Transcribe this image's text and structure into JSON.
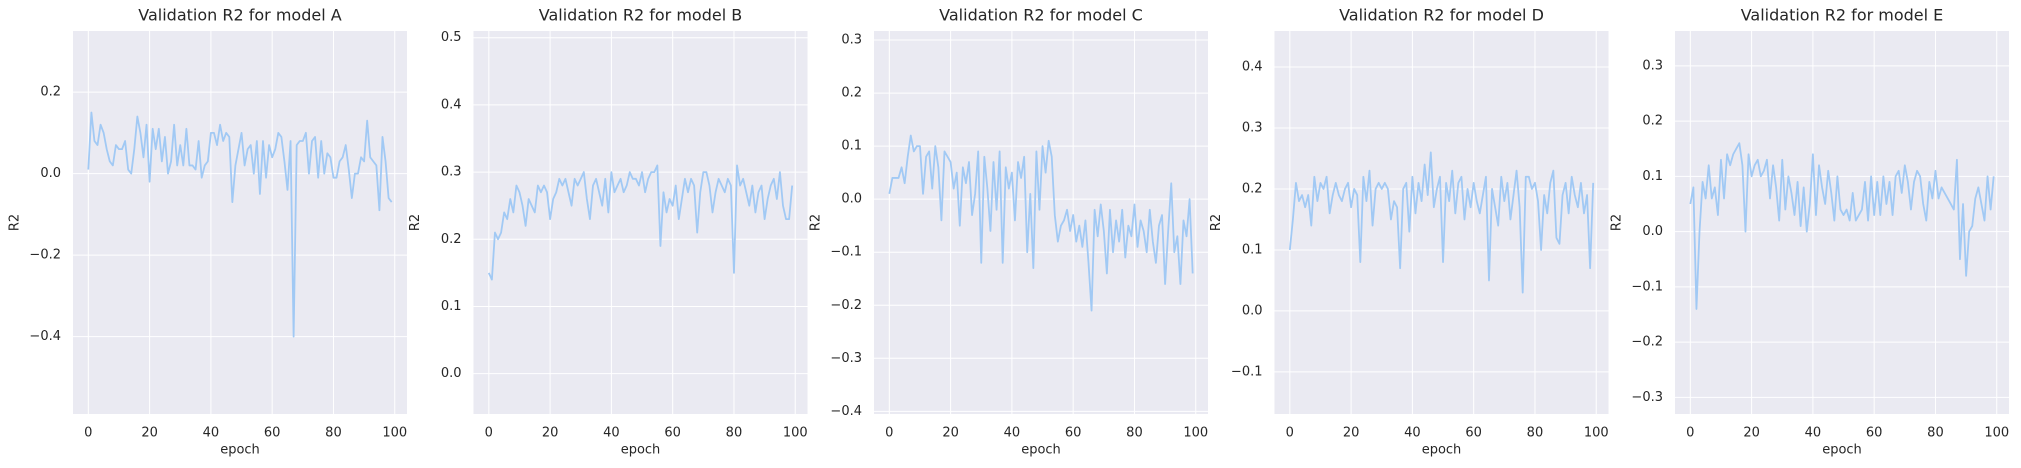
{
  "chart_data": [
    {
      "type": "line",
      "title": "Validation R2 for model A",
      "x_label": "epoch",
      "y_label": "R2",
      "grid": true,
      "color": "#a1c9f4",
      "x": [
        0,
        1,
        2,
        3,
        4,
        5,
        6,
        7,
        8,
        9,
        10,
        11,
        12,
        13,
        14,
        15,
        16,
        17,
        18,
        19,
        20,
        21,
        22,
        23,
        24,
        25,
        26,
        27,
        28,
        29,
        30,
        31,
        32,
        33,
        34,
        35,
        36,
        37,
        38,
        39,
        40,
        41,
        42,
        43,
        44,
        45,
        46,
        47,
        48,
        49,
        50,
        51,
        52,
        53,
        54,
        55,
        56,
        57,
        58,
        59,
        60,
        61,
        62,
        63,
        64,
        65,
        66,
        67,
        68,
        69,
        70,
        71,
        72,
        73,
        74,
        75,
        76,
        77,
        78,
        79,
        80,
        81,
        82,
        83,
        84,
        85,
        86,
        87,
        88,
        89,
        90,
        91,
        92,
        93,
        94,
        95,
        96,
        97,
        98,
        99
      ],
      "values": [
        0.01,
        0.15,
        0.08,
        0.07,
        0.12,
        0.1,
        0.06,
        0.03,
        0.02,
        0.07,
        0.06,
        0.06,
        0.08,
        0.01,
        0.0,
        0.06,
        0.14,
        0.1,
        0.04,
        0.12,
        -0.02,
        0.11,
        0.06,
        0.11,
        0.03,
        0.09,
        0.0,
        0.03,
        0.12,
        0.02,
        0.07,
        0.02,
        0.11,
        0.02,
        0.02,
        0.01,
        0.08,
        -0.01,
        0.02,
        0.03,
        0.1,
        0.1,
        0.07,
        0.12,
        0.08,
        0.1,
        0.09,
        -0.07,
        0.02,
        0.06,
        0.1,
        0.02,
        0.06,
        0.07,
        0.0,
        0.08,
        -0.05,
        0.08,
        -0.01,
        0.07,
        0.04,
        0.06,
        0.1,
        0.09,
        0.03,
        -0.04,
        0.08,
        -0.4,
        0.07,
        0.08,
        0.08,
        0.1,
        0.0,
        0.08,
        0.09,
        -0.01,
        0.08,
        0.0,
        0.05,
        0.04,
        -0.01,
        -0.01,
        0.03,
        0.04,
        0.07,
        0.01,
        -0.06,
        0.0,
        0.0,
        0.04,
        0.03,
        0.13,
        0.04,
        0.03,
        0.02,
        -0.09,
        0.09,
        0.03,
        -0.06,
        -0.07
      ],
      "xlim": [
        -5,
        104
      ],
      "xticks": [
        0,
        20,
        40,
        60,
        80,
        100
      ],
      "ylim": [
        -0.59,
        0.35
      ],
      "yticks": [
        {
          "value": -0.4,
          "label": "−0.4"
        },
        {
          "value": -0.2,
          "label": "−0.2"
        },
        {
          "value": 0,
          "label": "0.0"
        },
        0.2
      ]
    },
    {
      "type": "line",
      "title": "Validation R2 for model B",
      "x_label": "epoch",
      "y_label": "R2",
      "grid": true,
      "color": "#a1c9f4",
      "x": [
        0,
        1,
        2,
        3,
        4,
        5,
        6,
        7,
        8,
        9,
        10,
        11,
        12,
        13,
        14,
        15,
        16,
        17,
        18,
        19,
        20,
        21,
        22,
        23,
        24,
        25,
        26,
        27,
        28,
        29,
        30,
        31,
        32,
        33,
        34,
        35,
        36,
        37,
        38,
        39,
        40,
        41,
        42,
        43,
        44,
        45,
        46,
        47,
        48,
        49,
        50,
        51,
        52,
        53,
        54,
        55,
        56,
        57,
        58,
        59,
        60,
        61,
        62,
        63,
        64,
        65,
        66,
        67,
        68,
        69,
        70,
        71,
        72,
        73,
        74,
        75,
        76,
        77,
        78,
        79,
        80,
        81,
        82,
        83,
        84,
        85,
        86,
        87,
        88,
        89,
        90,
        91,
        92,
        93,
        94,
        95,
        96,
        97,
        98,
        99
      ],
      "values": [
        0.15,
        0.14,
        0.21,
        0.2,
        0.21,
        0.24,
        0.23,
        0.26,
        0.24,
        0.28,
        0.27,
        0.25,
        0.22,
        0.26,
        0.25,
        0.24,
        0.28,
        0.27,
        0.28,
        0.27,
        0.23,
        0.26,
        0.27,
        0.29,
        0.28,
        0.29,
        0.27,
        0.25,
        0.29,
        0.28,
        0.29,
        0.3,
        0.26,
        0.23,
        0.28,
        0.29,
        0.27,
        0.25,
        0.29,
        0.24,
        0.3,
        0.27,
        0.28,
        0.29,
        0.27,
        0.28,
        0.3,
        0.29,
        0.29,
        0.28,
        0.3,
        0.27,
        0.29,
        0.3,
        0.3,
        0.31,
        0.19,
        0.27,
        0.24,
        0.26,
        0.25,
        0.28,
        0.23,
        0.26,
        0.29,
        0.27,
        0.29,
        0.28,
        0.21,
        0.27,
        0.3,
        0.3,
        0.28,
        0.24,
        0.27,
        0.29,
        0.28,
        0.27,
        0.29,
        0.28,
        0.15,
        0.31,
        0.28,
        0.29,
        0.27,
        0.25,
        0.28,
        0.24,
        0.27,
        0.28,
        0.23,
        0.26,
        0.28,
        0.29,
        0.26,
        0.3,
        0.25,
        0.23,
        0.23,
        0.28
      ],
      "xlim": [
        -5,
        104
      ],
      "xticks": [
        0,
        20,
        40,
        60,
        80,
        100
      ],
      "ylim": [
        -0.06,
        0.51
      ],
      "yticks": [
        {
          "value": 0,
          "label": "0.0"
        },
        0.1,
        0.2,
        0.3,
        0.4,
        0.5
      ]
    },
    {
      "type": "line",
      "title": "Validation R2 for model C",
      "x_label": "epoch",
      "y_label": "R2",
      "grid": true,
      "color": "#a1c9f4",
      "x": [
        0,
        1,
        2,
        3,
        4,
        5,
        6,
        7,
        8,
        9,
        10,
        11,
        12,
        13,
        14,
        15,
        16,
        17,
        18,
        19,
        20,
        21,
        22,
        23,
        24,
        25,
        26,
        27,
        28,
        29,
        30,
        31,
        32,
        33,
        34,
        35,
        36,
        37,
        38,
        39,
        40,
        41,
        42,
        43,
        44,
        45,
        46,
        47,
        48,
        49,
        50,
        51,
        52,
        53,
        54,
        55,
        56,
        57,
        58,
        59,
        60,
        61,
        62,
        63,
        64,
        65,
        66,
        67,
        68,
        69,
        70,
        71,
        72,
        73,
        74,
        75,
        76,
        77,
        78,
        79,
        80,
        81,
        82,
        83,
        84,
        85,
        86,
        87,
        88,
        89,
        90,
        91,
        92,
        93,
        94,
        95,
        96,
        97,
        98,
        99
      ],
      "values": [
        0.01,
        0.04,
        0.04,
        0.04,
        0.06,
        0.03,
        0.08,
        0.12,
        0.09,
        0.1,
        0.1,
        0.01,
        0.08,
        0.09,
        0.02,
        0.1,
        0.06,
        -0.04,
        0.09,
        0.08,
        0.07,
        0.02,
        0.05,
        -0.05,
        0.06,
        0.03,
        0.07,
        -0.03,
        0.01,
        0.09,
        -0.12,
        0.08,
        0.02,
        -0.06,
        0.07,
        -0.02,
        0.09,
        -0.12,
        0.06,
        0.02,
        0.05,
        -0.04,
        0.07,
        0.04,
        0.08,
        -0.1,
        0.01,
        -0.13,
        0.09,
        -0.02,
        0.1,
        0.05,
        0.11,
        0.08,
        -0.03,
        -0.08,
        -0.05,
        -0.04,
        -0.02,
        -0.06,
        -0.03,
        -0.08,
        -0.05,
        -0.09,
        -0.04,
        -0.12,
        -0.21,
        -0.02,
        -0.07,
        -0.01,
        -0.06,
        -0.14,
        -0.02,
        -0.1,
        -0.04,
        -0.08,
        -0.02,
        -0.11,
        -0.05,
        -0.07,
        -0.01,
        -0.09,
        -0.04,
        -0.06,
        -0.1,
        -0.02,
        -0.08,
        -0.12,
        -0.05,
        -0.03,
        -0.16,
        -0.06,
        0.03,
        -0.1,
        -0.07,
        -0.16,
        -0.04,
        -0.07,
        0.0,
        -0.14
      ],
      "xlim": [
        -5,
        104
      ],
      "xticks": [
        0,
        20,
        40,
        60,
        80,
        100
      ],
      "ylim": [
        -0.405,
        0.317
      ],
      "yticks": [
        {
          "value": -0.4,
          "label": "−0.4"
        },
        {
          "value": -0.3,
          "label": "−0.3"
        },
        {
          "value": -0.2,
          "label": "−0.2"
        },
        {
          "value": -0.1,
          "label": "−0.1"
        },
        {
          "value": 0,
          "label": "0.0"
        },
        0.1,
        0.2,
        0.3
      ]
    },
    {
      "type": "line",
      "title": "Validation R2 for model D",
      "x_label": "epoch",
      "y_label": "R2",
      "grid": true,
      "color": "#a1c9f4",
      "x": [
        0,
        1,
        2,
        3,
        4,
        5,
        6,
        7,
        8,
        9,
        10,
        11,
        12,
        13,
        14,
        15,
        16,
        17,
        18,
        19,
        20,
        21,
        22,
        23,
        24,
        25,
        26,
        27,
        28,
        29,
        30,
        31,
        32,
        33,
        34,
        35,
        36,
        37,
        38,
        39,
        40,
        41,
        42,
        43,
        44,
        45,
        46,
        47,
        48,
        49,
        50,
        51,
        52,
        53,
        54,
        55,
        56,
        57,
        58,
        59,
        60,
        61,
        62,
        63,
        64,
        65,
        66,
        67,
        68,
        69,
        70,
        71,
        72,
        73,
        74,
        75,
        76,
        77,
        78,
        79,
        80,
        81,
        82,
        83,
        84,
        85,
        86,
        87,
        88,
        89,
        90,
        91,
        92,
        93,
        94,
        95,
        96,
        97,
        98,
        99
      ],
      "values": [
        0.1,
        0.15,
        0.21,
        0.18,
        0.19,
        0.17,
        0.19,
        0.14,
        0.22,
        0.18,
        0.21,
        0.2,
        0.22,
        0.16,
        0.19,
        0.21,
        0.19,
        0.18,
        0.2,
        0.21,
        0.17,
        0.2,
        0.19,
        0.08,
        0.22,
        0.18,
        0.23,
        0.14,
        0.2,
        0.21,
        0.2,
        0.21,
        0.2,
        0.15,
        0.18,
        0.17,
        0.07,
        0.2,
        0.21,
        0.13,
        0.22,
        0.16,
        0.21,
        0.18,
        0.24,
        0.19,
        0.26,
        0.17,
        0.2,
        0.22,
        0.08,
        0.21,
        0.18,
        0.23,
        0.16,
        0.21,
        0.22,
        0.15,
        0.2,
        0.17,
        0.21,
        0.18,
        0.16,
        0.19,
        0.22,
        0.05,
        0.2,
        0.17,
        0.14,
        0.22,
        0.18,
        0.21,
        0.15,
        0.19,
        0.23,
        0.17,
        0.03,
        0.22,
        0.22,
        0.2,
        0.21,
        0.18,
        0.1,
        0.19,
        0.16,
        0.21,
        0.23,
        0.12,
        0.11,
        0.19,
        0.21,
        0.16,
        0.22,
        0.19,
        0.17,
        0.21,
        0.16,
        0.19,
        0.07,
        0.21
      ],
      "xlim": [
        -5,
        104
      ],
      "xticks": [
        0,
        20,
        40,
        60,
        80,
        100
      ],
      "ylim": [
        -0.169,
        0.459
      ],
      "yticks": [
        {
          "value": -0.1,
          "label": "−0.1"
        },
        {
          "value": 0,
          "label": "0.0"
        },
        0.1,
        0.2,
        0.3,
        0.4
      ]
    },
    {
      "type": "line",
      "title": "Validation R2 for model E",
      "x_label": "epoch",
      "y_label": "R2",
      "grid": true,
      "color": "#a1c9f4",
      "x": [
        0,
        1,
        2,
        3,
        4,
        5,
        6,
        7,
        8,
        9,
        10,
        11,
        12,
        13,
        14,
        15,
        16,
        17,
        18,
        19,
        20,
        21,
        22,
        23,
        24,
        25,
        26,
        27,
        28,
        29,
        30,
        31,
        32,
        33,
        34,
        35,
        36,
        37,
        38,
        39,
        40,
        41,
        42,
        43,
        44,
        45,
        46,
        47,
        48,
        49,
        50,
        51,
        52,
        53,
        54,
        55,
        56,
        57,
        58,
        59,
        60,
        61,
        62,
        63,
        64,
        65,
        66,
        67,
        68,
        69,
        70,
        71,
        72,
        73,
        74,
        75,
        76,
        77,
        78,
        79,
        80,
        81,
        82,
        83,
        84,
        85,
        86,
        87,
        88,
        89,
        90,
        91,
        92,
        93,
        94,
        95,
        96,
        97,
        98,
        99
      ],
      "values": [
        0.05,
        0.08,
        -0.14,
        0.0,
        0.09,
        0.06,
        0.12,
        0.06,
        0.08,
        0.03,
        0.13,
        0.06,
        0.14,
        0.12,
        0.14,
        0.15,
        0.16,
        0.12,
        0.0,
        0.14,
        0.1,
        0.12,
        0.13,
        0.1,
        0.11,
        0.13,
        0.06,
        0.12,
        0.08,
        0.02,
        0.13,
        0.04,
        0.1,
        0.07,
        0.03,
        0.09,
        0.01,
        0.08,
        0.0,
        0.05,
        0.14,
        0.03,
        0.12,
        0.08,
        0.05,
        0.11,
        0.07,
        0.02,
        0.1,
        0.04,
        0.03,
        0.04,
        0.02,
        0.07,
        0.02,
        0.03,
        0.04,
        0.09,
        0.02,
        0.1,
        0.03,
        0.09,
        0.03,
        0.1,
        0.05,
        0.09,
        0.03,
        0.1,
        0.11,
        0.07,
        0.12,
        0.09,
        0.04,
        0.09,
        0.11,
        0.1,
        0.05,
        0.02,
        0.09,
        0.06,
        0.11,
        0.06,
        0.08,
        0.07,
        0.06,
        0.05,
        0.04,
        0.13,
        -0.05,
        0.05,
        -0.08,
        0.0,
        0.01,
        0.06,
        0.08,
        0.05,
        0.02,
        0.1,
        0.04,
        0.1
      ],
      "xlim": [
        -5,
        104
      ],
      "xticks": [
        0,
        20,
        40,
        60,
        80,
        100
      ],
      "ylim": [
        -0.33,
        0.363
      ],
      "yticks": [
        {
          "value": -0.3,
          "label": "−0.3"
        },
        {
          "value": -0.2,
          "label": "−0.2"
        },
        {
          "value": -0.1,
          "label": "−0.1"
        },
        {
          "value": 0,
          "label": "0.0"
        },
        0.1,
        0.2,
        0.3
      ]
    }
  ]
}
